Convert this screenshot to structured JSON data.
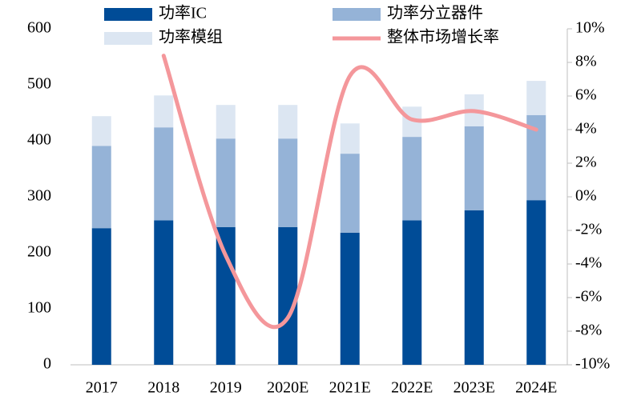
{
  "chart_data": {
    "type": "bar-line",
    "categories": [
      "2017",
      "2018",
      "2019",
      "2020E",
      "2021E",
      "2022E",
      "2023E",
      "2024E"
    ],
    "series": [
      {
        "name": "功率IC",
        "color": "#004c97",
        "values": [
          244,
          258,
          246,
          246,
          236,
          258,
          276,
          294
        ]
      },
      {
        "name": "功率分立器件",
        "color": "#95b3d7",
        "values": [
          147,
          166,
          158,
          158,
          141,
          149,
          150,
          152
        ]
      },
      {
        "name": "功率模组",
        "color": "#dce6f2",
        "values": [
          53,
          57,
          60,
          60,
          54,
          54,
          57,
          61
        ]
      },
      {
        "name": "整体市场增长率",
        "color": "#f4979b",
        "axis": "y2",
        "type": "line",
        "values": [
          null,
          8.4,
          -3.5,
          -7.2,
          7.2,
          4.6,
          5.1,
          4.0
        ]
      }
    ],
    "ylim": [
      0,
      600
    ],
    "yticks": [
      0,
      100,
      200,
      300,
      400,
      500,
      600
    ],
    "y2lim": [
      -10,
      10
    ],
    "y2ticks": [
      {
        "value": -10,
        "label": "-10%"
      },
      {
        "value": -8,
        "label": "-8%"
      },
      {
        "value": -6,
        "label": "-6%"
      },
      {
        "value": -4,
        "label": "-4%"
      },
      {
        "value": -2,
        "label": "-2%"
      },
      {
        "value": 0,
        "label": "0%"
      },
      {
        "value": 2,
        "label": "2%"
      },
      {
        "value": 4,
        "label": "4%"
      },
      {
        "value": 6,
        "label": "6%"
      },
      {
        "value": 8,
        "label": "8%"
      },
      {
        "value": 10,
        "label": "10%"
      }
    ]
  }
}
